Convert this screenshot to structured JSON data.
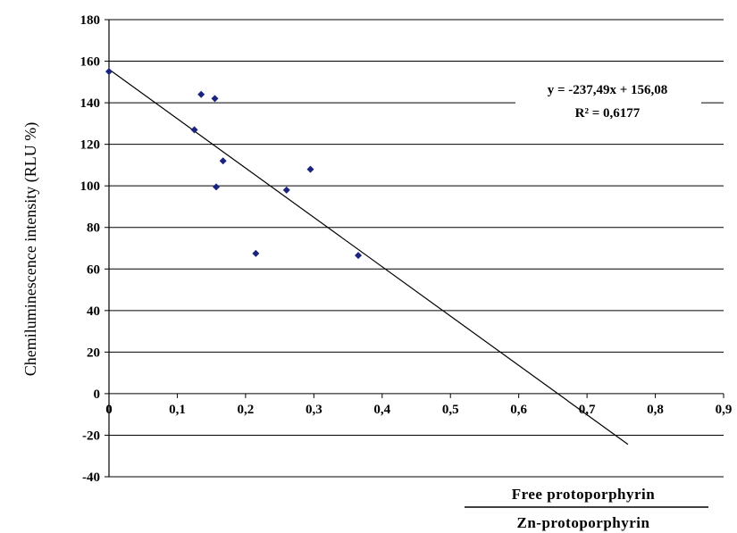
{
  "chart_data": {
    "type": "scatter",
    "ylabel": "Chemiluminescence intensity (RLU %)",
    "xlabel_numerator": "Free protoporphyrin",
    "xlabel_denominator": "Zn-protoporphyrin",
    "xlim": [
      0,
      0.9
    ],
    "ylim": [
      -40,
      180
    ],
    "x_ticks": [
      0,
      0.1,
      0.2,
      0.3,
      0.4,
      0.5,
      0.6,
      0.7,
      0.8,
      0.9
    ],
    "x_tick_labels": [
      "0",
      "0,1",
      "0,2",
      "0,3",
      "0,4",
      "0,5",
      "0,6",
      "0,7",
      "0,8",
      "0,9"
    ],
    "y_ticks": [
      -40,
      -20,
      0,
      20,
      40,
      60,
      80,
      100,
      120,
      140,
      160,
      180
    ],
    "y_tick_labels": [
      "-40",
      "-20",
      "0",
      "20",
      "40",
      "60",
      "80",
      "100",
      "120",
      "140",
      "160",
      "180"
    ],
    "grid": true,
    "marker_color": "#1a237e",
    "points": [
      {
        "x": 0,
        "y": 155
      },
      {
        "x": 0.125,
        "y": 127
      },
      {
        "x": 0.135,
        "y": 144
      },
      {
        "x": 0.155,
        "y": 142
      },
      {
        "x": 0.157,
        "y": 99.5
      },
      {
        "x": 0.167,
        "y": 112
      },
      {
        "x": 0.215,
        "y": 67.5
      },
      {
        "x": 0.26,
        "y": 98
      },
      {
        "x": 0.295,
        "y": 108
      },
      {
        "x": 0.365,
        "y": 66.5
      }
    ],
    "trendline": {
      "slope": -237.49,
      "intercept": 156.08,
      "x_range": [
        0,
        0.76
      ],
      "equation": "y = -237,49x + 156,08",
      "r2": "R² = 0,6177"
    }
  }
}
